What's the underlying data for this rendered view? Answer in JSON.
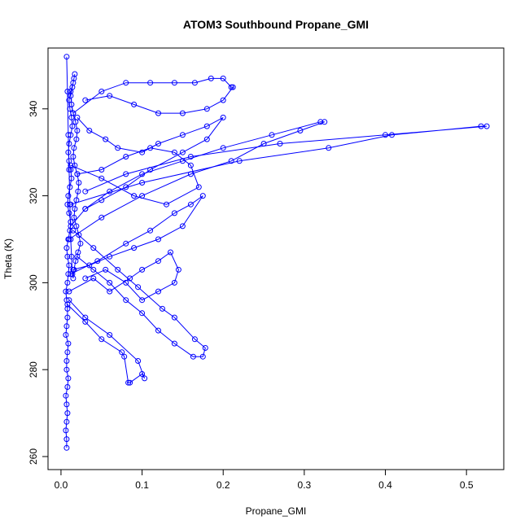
{
  "chart_data": {
    "type": "line",
    "title": "ATOM3 Southbound Propane_GMI",
    "xlabel": "Propane_GMI",
    "ylabel": "Theta (K)",
    "xlim": [
      -0.016,
      0.546
    ],
    "ylim": [
      257.0,
      354.0
    ],
    "xticks": [
      0.0,
      0.1,
      0.2,
      0.3,
      0.4,
      0.5
    ],
    "xtick_labels": [
      "0.0",
      "0.1",
      "0.2",
      "0.3",
      "0.4",
      "0.5"
    ],
    "yticks": [
      260,
      280,
      300,
      320,
      340
    ],
    "ytick_labels": [
      "260",
      "280",
      "300",
      "320",
      "340"
    ],
    "marker": "open-circle",
    "grid": false,
    "color": "#0000ff",
    "series": [
      {
        "x": [
          0.007,
          0.007,
          0.006,
          0.007,
          0.008,
          0.007,
          0.006,
          0.008,
          0.009,
          0.007,
          0.007,
          0.008,
          0.009,
          0.006,
          0.007,
          0.008,
          0.008,
          0.007,
          0.006,
          0.008,
          0.009,
          0.01,
          0.008,
          0.007,
          0.009,
          0.011,
          0.012,
          0.01,
          0.008,
          0.009,
          0.011,
          0.013,
          0.012,
          0.01,
          0.009,
          0.01,
          0.012,
          0.014,
          0.013,
          0.011,
          0.01,
          0.012,
          0.015,
          0.017,
          0.016,
          0.014,
          0.012,
          0.013,
          0.015,
          0.018,
          0.02,
          0.019,
          0.016,
          0.015,
          0.017,
          0.02,
          0.022,
          0.021,
          0.019,
          0.017,
          0.016,
          0.019,
          0.022,
          0.024,
          0.021,
          0.018,
          0.016,
          0.015,
          0.014,
          0.013,
          0.012,
          0.011,
          0.01,
          0.009,
          0.008,
          0.007
        ],
        "y": [
          262,
          264,
          266,
          268,
          270,
          272,
          274,
          276,
          278,
          280,
          282,
          284,
          286,
          288,
          290,
          292,
          294,
          296,
          298,
          300,
          302,
          304,
          306,
          308,
          310,
          312,
          314,
          316,
          318,
          320,
          322,
          324,
          326,
          328,
          330,
          332,
          334,
          336,
          338,
          340,
          342,
          344,
          346,
          348,
          347,
          345,
          343,
          341,
          339,
          337,
          335,
          333,
          331,
          329,
          327,
          325,
          323,
          321,
          319,
          317,
          315,
          313,
          311,
          309,
          307,
          305,
          303,
          301,
          302,
          306,
          310,
          318,
          326,
          334,
          344,
          352
        ]
      },
      {
        "x": [
          0.012,
          0.045,
          0.08,
          0.11,
          0.14,
          0.16,
          0.175,
          0.15,
          0.12,
          0.09,
          0.06,
          0.035,
          0.015
        ],
        "y": [
          302,
          305,
          309,
          312,
          316,
          318,
          320,
          313,
          310,
          308,
          306,
          304,
          303
        ]
      },
      {
        "x": [
          0.01,
          0.05,
          0.1,
          0.16,
          0.21,
          0.25,
          0.295,
          0.325,
          0.32,
          0.26,
          0.2,
          0.15,
          0.1,
          0.06,
          0.03,
          0.012
        ],
        "y": [
          310,
          315,
          320,
          325,
          328,
          332,
          335,
          337,
          337,
          334,
          331,
          328,
          325,
          321,
          317,
          313
        ]
      },
      {
        "x": [
          0.012,
          0.1,
          0.22,
          0.33,
          0.408,
          0.518,
          0.525,
          0.4,
          0.27,
          0.16,
          0.08,
          0.03
        ],
        "y": [
          318,
          323,
          328,
          331,
          334,
          336,
          336,
          334,
          332,
          329,
          325,
          321
        ]
      },
      {
        "x": [
          0.015,
          0.04,
          0.07,
          0.095,
          0.125,
          0.14,
          0.165,
          0.178,
          0.175,
          0.163,
          0.14,
          0.12,
          0.1,
          0.08,
          0.06,
          0.04,
          0.02
        ],
        "y": [
          312,
          308,
          303,
          299,
          294,
          292,
          287,
          285,
          283,
          283,
          286,
          289,
          293,
          296,
          300,
          303,
          306
        ]
      },
      {
        "x": [
          0.008,
          0.03,
          0.05,
          0.075,
          0.078,
          0.083,
          0.085,
          0.1,
          0.103,
          0.095,
          0.06,
          0.03,
          0.01
        ],
        "y": [
          295,
          291,
          287,
          284,
          283,
          277,
          277,
          279,
          278,
          282,
          288,
          292,
          296
        ]
      },
      {
        "x": [
          0.015,
          0.05,
          0.08,
          0.11,
          0.14,
          0.165,
          0.185,
          0.2,
          0.21,
          0.212,
          0.2,
          0.18,
          0.15,
          0.12,
          0.09,
          0.06,
          0.03
        ],
        "y": [
          339,
          344,
          346,
          346,
          346,
          346,
          347,
          347,
          345,
          345,
          342,
          340,
          339,
          339,
          341,
          343,
          342
        ]
      },
      {
        "x": [
          0.02,
          0.035,
          0.055,
          0.07,
          0.1,
          0.12,
          0.15,
          0.18,
          0.2,
          0.18,
          0.15,
          0.11,
          0.08,
          0.05,
          0.03
        ],
        "y": [
          338,
          335,
          333,
          331,
          330,
          332,
          334,
          336,
          338,
          333,
          330,
          326,
          322,
          319,
          317
        ]
      },
      {
        "x": [
          0.01,
          0.04,
          0.06,
          0.085,
          0.1,
          0.12,
          0.135,
          0.145,
          0.14,
          0.12,
          0.1,
          0.08,
          0.055,
          0.03
        ],
        "y": [
          298,
          301,
          298,
          301,
          303,
          305,
          307,
          303,
          300,
          298,
          296,
          300,
          303,
          301
        ]
      },
      {
        "x": [
          0.012,
          0.05,
          0.09,
          0.13,
          0.17,
          0.16,
          0.14,
          0.11,
          0.08,
          0.05,
          0.02
        ],
        "y": [
          327,
          324,
          320,
          318,
          322,
          327,
          330,
          331,
          329,
          326,
          325
        ]
      }
    ]
  }
}
